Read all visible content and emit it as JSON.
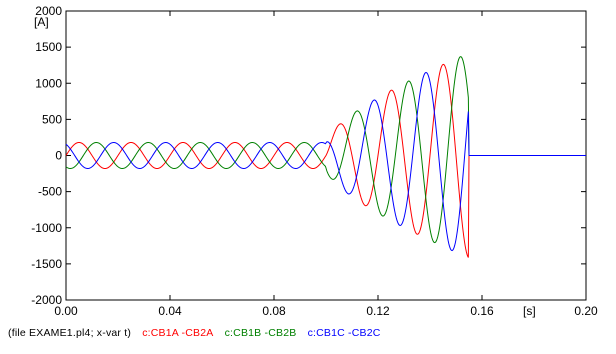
{
  "chart_data": {
    "type": "line",
    "title": "",
    "xlabel": "[s]",
    "ylabel": "[A]",
    "xlim": [
      0.0,
      0.2
    ],
    "ylim": [
      -2000,
      2000
    ],
    "x_ticks": [
      0.0,
      0.04,
      0.08,
      0.12,
      0.16,
      0.2
    ],
    "x_tick_labels": [
      "0.00",
      "0.04",
      "0.08",
      "0.12",
      "0.16",
      "0.20"
    ],
    "y_ticks": [
      -2000,
      -1500,
      -1000,
      -500,
      0,
      500,
      1000,
      1500,
      2000
    ],
    "y_tick_labels": [
      "-2000",
      "-1500",
      "-1000",
      "-500",
      "0",
      "500",
      "1000",
      "1500",
      "2000"
    ],
    "grid": false,
    "frequency_hz": 50,
    "series": [
      {
        "name": "c:CB1A -CB2A",
        "color": "#ff0000",
        "pre_fault_amplitude": 180,
        "fault_amplitude_start": 200,
        "fault_amplitude_end": 1420,
        "phase_deg": 0,
        "fault_start_s": 0.1,
        "interruption_s": 0.155
      },
      {
        "name": "c:CB1B -CB2B",
        "color": "#008000",
        "pre_fault_amplitude": 180,
        "fault_amplitude_start": 200,
        "fault_amplitude_end": 1420,
        "phase_deg": -120,
        "fault_start_s": 0.1,
        "interruption_s": 0.155
      },
      {
        "name": "c:CB1C -CB2C",
        "color": "#0000ff",
        "pre_fault_amplitude": 180,
        "fault_amplitude_start": 200,
        "fault_amplitude_end": 1420,
        "phase_deg": 120,
        "fault_start_s": 0.1,
        "interruption_s": 0.155
      }
    ]
  },
  "footer": {
    "file_info": "(file EXAME1.pl4; x-var t)",
    "legend": [
      {
        "label": "c:CB1A -CB2A",
        "color": "#ff0000"
      },
      {
        "label": "c:CB1B -CB2B",
        "color": "#008000"
      },
      {
        "label": "c:CB1C -CB2C",
        "color": "#0000ff"
      }
    ]
  }
}
